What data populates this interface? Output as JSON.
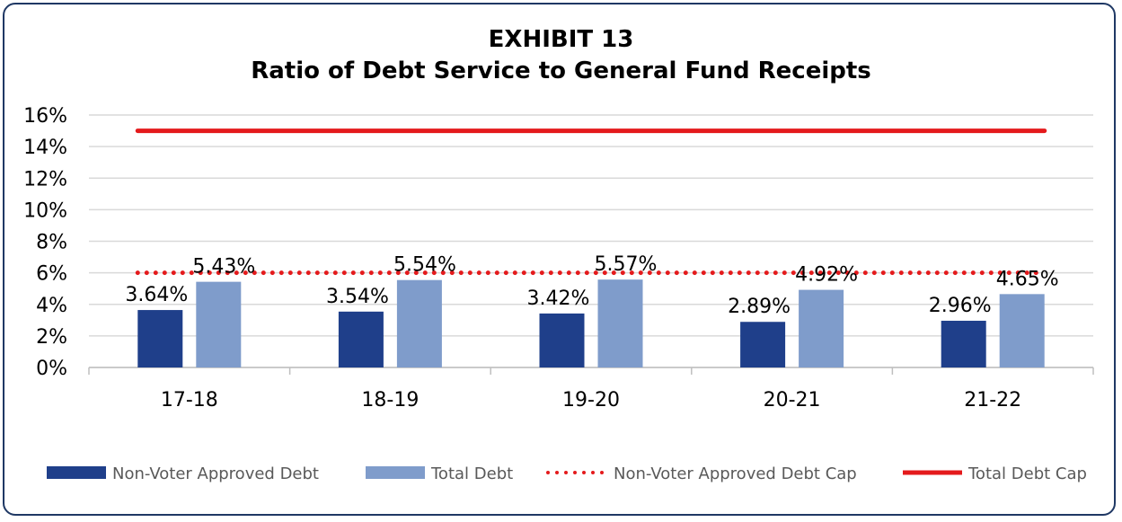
{
  "chart_data": {
    "type": "bar",
    "title": "EXHIBIT 13",
    "subtitle": "Ratio of Debt Service to General Fund Receipts",
    "xlabel": "",
    "ylabel": "",
    "categories": [
      "17-18",
      "18-19",
      "19-20",
      "20-21",
      "21-22"
    ],
    "ylim": [
      0,
      16
    ],
    "yticks": [
      0,
      2,
      4,
      6,
      8,
      10,
      12,
      14,
      16
    ],
    "ytick_labels": [
      "0%",
      "2%",
      "4%",
      "6%",
      "8%",
      "10%",
      "12%",
      "14%",
      "16%"
    ],
    "grid": true,
    "legend_position": "bottom",
    "series": [
      {
        "name": "Non-Voter Approved Debt",
        "kind": "bar",
        "color": "#1f3f8a",
        "values": [
          3.64,
          3.54,
          3.42,
          2.89,
          2.96
        ],
        "labels": [
          "3.64%",
          "3.54%",
          "3.42%",
          "2.89%",
          "2.96%"
        ]
      },
      {
        "name": "Total Debt",
        "kind": "bar",
        "color": "#7f9ccb",
        "values": [
          5.43,
          5.54,
          5.57,
          4.92,
          4.65
        ],
        "labels": [
          "5.43%",
          "5.54%",
          "5.57%",
          "4.92%",
          "4.65%"
        ]
      },
      {
        "name": "Non-Voter Approved Debt Cap",
        "kind": "line",
        "style": "dotted",
        "color": "#e41a1c",
        "values": [
          6,
          6,
          6,
          6,
          6
        ]
      },
      {
        "name": "Total Debt Cap",
        "kind": "line",
        "style": "solid",
        "color": "#e41a1c",
        "values": [
          15,
          15,
          15,
          15,
          15
        ]
      }
    ]
  }
}
